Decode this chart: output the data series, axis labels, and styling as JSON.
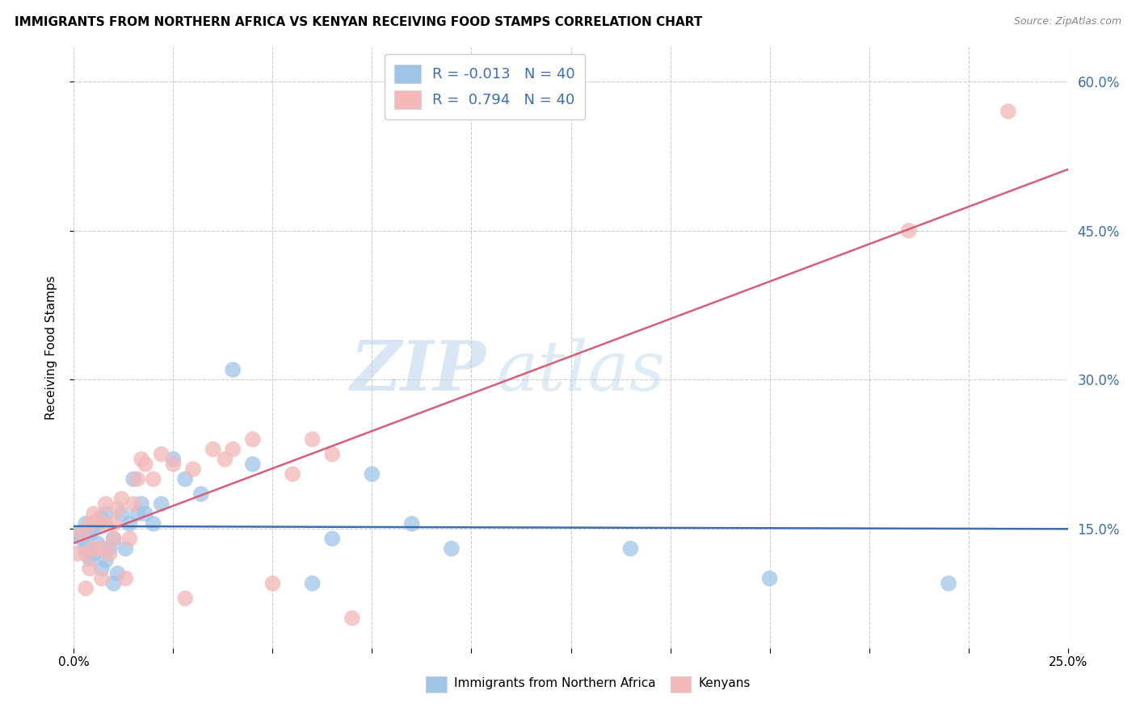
{
  "title": "IMMIGRANTS FROM NORTHERN AFRICA VS KENYAN RECEIVING FOOD STAMPS CORRELATION CHART",
  "source": "Source: ZipAtlas.com",
  "legend_blue": "Immigrants from Northern Africa",
  "legend_pink": "Kenyans",
  "ylabel": "Receiving Food Stamps",
  "xlim": [
    0.0,
    0.25
  ],
  "ylim": [
    0.03,
    0.635
  ],
  "yticks": [
    0.15,
    0.3,
    0.45,
    0.6
  ],
  "xticks": [
    0.0,
    0.025,
    0.05,
    0.075,
    0.1,
    0.125,
    0.15,
    0.175,
    0.2,
    0.225,
    0.25
  ],
  "xtick_labels": [
    "0.0%",
    "",
    "",
    "",
    "",
    "",
    "",
    "",
    "",
    "",
    "25.0%"
  ],
  "R_blue": -0.013,
  "N_blue": 40,
  "R_pink": 0.794,
  "N_pink": 40,
  "color_blue": "#9fc5e8",
  "color_pink": "#f4b8b8",
  "line_blue": "#3d6fad",
  "line_pink": "#d45f7a",
  "ytick_color": "#3d6fad",
  "background_color": "#ffffff",
  "grid_color": "#cccccc",
  "blue_x": [
    0.001,
    0.002,
    0.003,
    0.003,
    0.004,
    0.004,
    0.005,
    0.005,
    0.006,
    0.006,
    0.007,
    0.007,
    0.008,
    0.008,
    0.009,
    0.01,
    0.01,
    0.011,
    0.012,
    0.013,
    0.014,
    0.015,
    0.016,
    0.017,
    0.018,
    0.02,
    0.022,
    0.025,
    0.028,
    0.032,
    0.04,
    0.045,
    0.06,
    0.065,
    0.075,
    0.085,
    0.095,
    0.14,
    0.175,
    0.22
  ],
  "blue_y": [
    0.145,
    0.14,
    0.13,
    0.155,
    0.145,
    0.12,
    0.15,
    0.125,
    0.155,
    0.135,
    0.11,
    0.16,
    0.165,
    0.118,
    0.13,
    0.095,
    0.14,
    0.105,
    0.165,
    0.13,
    0.155,
    0.2,
    0.165,
    0.175,
    0.165,
    0.155,
    0.175,
    0.22,
    0.2,
    0.185,
    0.31,
    0.215,
    0.095,
    0.14,
    0.205,
    0.155,
    0.13,
    0.13,
    0.1,
    0.095
  ],
  "pink_x": [
    0.001,
    0.002,
    0.003,
    0.003,
    0.004,
    0.004,
    0.005,
    0.005,
    0.006,
    0.007,
    0.007,
    0.008,
    0.008,
    0.009,
    0.01,
    0.01,
    0.011,
    0.012,
    0.013,
    0.014,
    0.015,
    0.016,
    0.017,
    0.018,
    0.02,
    0.022,
    0.025,
    0.028,
    0.03,
    0.035,
    0.038,
    0.04,
    0.045,
    0.05,
    0.055,
    0.06,
    0.065,
    0.07,
    0.21,
    0.235
  ],
  "pink_y": [
    0.125,
    0.145,
    0.09,
    0.125,
    0.155,
    0.11,
    0.165,
    0.13,
    0.16,
    0.1,
    0.13,
    0.155,
    0.175,
    0.125,
    0.14,
    0.155,
    0.17,
    0.18,
    0.1,
    0.14,
    0.175,
    0.2,
    0.22,
    0.215,
    0.2,
    0.225,
    0.215,
    0.08,
    0.21,
    0.23,
    0.22,
    0.23,
    0.24,
    0.095,
    0.205,
    0.24,
    0.225,
    0.06,
    0.45,
    0.57
  ],
  "watermark_zip": "ZIP",
  "watermark_atlas": "atlas"
}
